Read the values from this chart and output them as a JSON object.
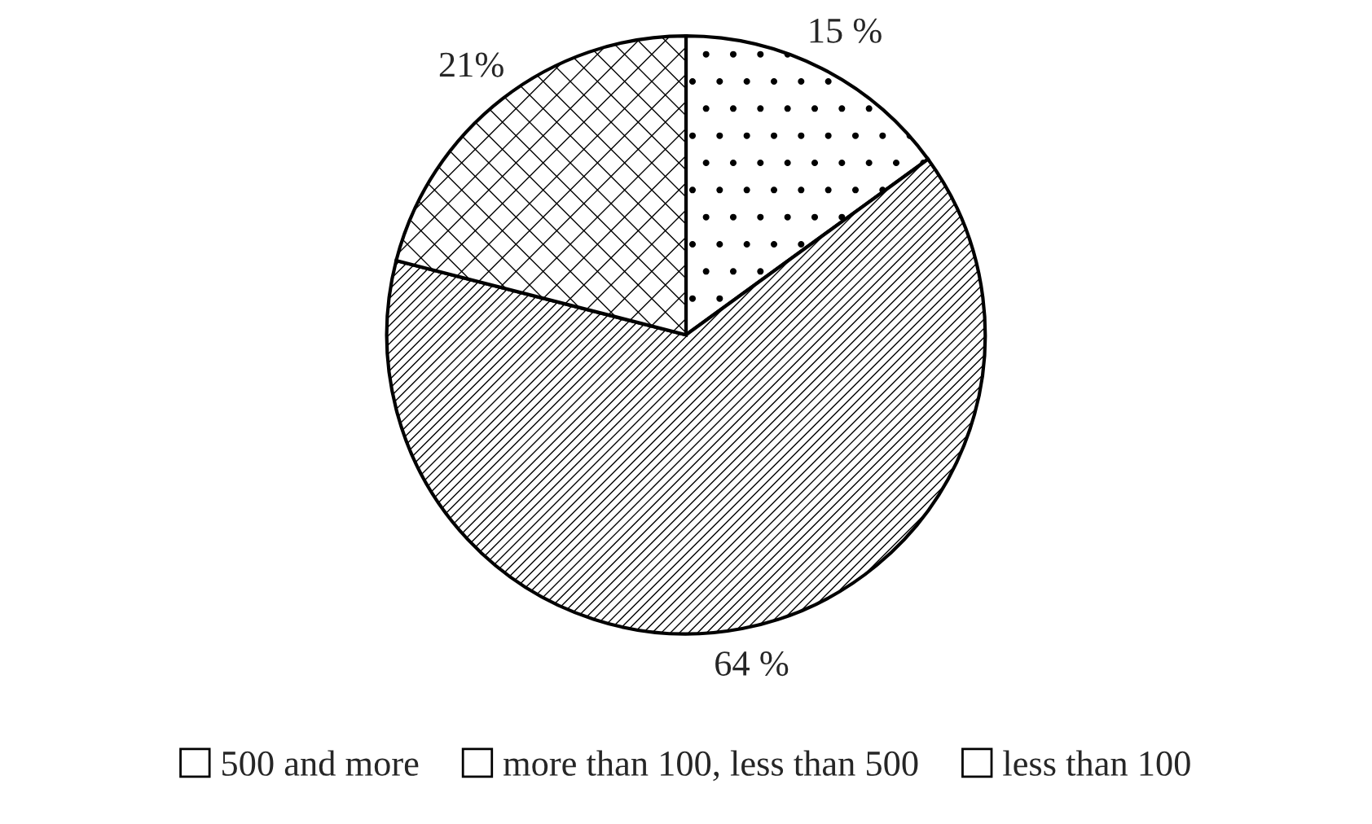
{
  "chart_data": {
    "type": "pie",
    "categories": [
      "500 and more",
      "more than 100, less than 500",
      "less than 100"
    ],
    "values": [
      15,
      64,
      21
    ],
    "value_labels": [
      "15 %",
      "64 %",
      "21%"
    ],
    "colors": [
      "#ffffff",
      "#ffffff",
      "#ffffff"
    ],
    "legend": "bottom"
  }
}
